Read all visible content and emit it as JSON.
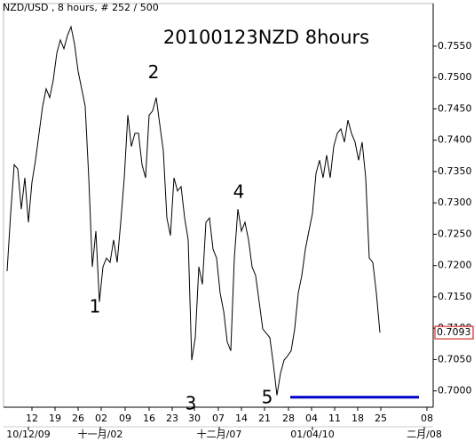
{
  "chart_data": {
    "type": "line",
    "header": "NZD/USD , 8 hours, # 252 / 500",
    "title": "20100123NZD 8hours",
    "series": [
      {
        "name": "NZD/USD",
        "color": "#000000",
        "values": [
          0.7191,
          0.7283,
          0.7361,
          0.7354,
          0.729,
          0.734,
          0.7269,
          0.7333,
          0.7368,
          0.7411,
          0.7454,
          0.7482,
          0.7468,
          0.7496,
          0.7539,
          0.756,
          0.7546,
          0.7567,
          0.7581,
          0.7553,
          0.751,
          0.7482,
          0.7454,
          0.734,
          0.7198,
          0.7255,
          0.7142,
          0.7198,
          0.7212,
          0.7205,
          0.7241,
          0.7205,
          0.7269,
          0.734,
          0.744,
          0.739,
          0.7411,
          0.7411,
          0.7361,
          0.734,
          0.744,
          0.7447,
          0.7468,
          0.7425,
          0.7383,
          0.7276,
          0.7248,
          0.734,
          0.7319,
          0.7326,
          0.7276,
          0.7241,
          0.7049,
          0.7085,
          0.7198,
          0.717,
          0.7269,
          0.7276,
          0.7226,
          0.7212,
          0.7156,
          0.7127,
          0.7078,
          0.7064,
          0.7212,
          0.729,
          0.7255,
          0.7269,
          0.7241,
          0.7198,
          0.7184,
          0.7142,
          0.7099,
          0.7092,
          0.7085,
          0.7042,
          0.6993,
          0.7028,
          0.7049,
          0.7056,
          0.7064,
          0.7099,
          0.7156,
          0.7184,
          0.7226,
          0.7255,
          0.7283,
          0.7347,
          0.7368,
          0.734,
          0.7376,
          0.734,
          0.739,
          0.7411,
          0.7418,
          0.7397,
          0.7432,
          0.7411,
          0.7397,
          0.7368,
          0.7397,
          0.734,
          0.7212,
          0.7205,
          0.7156,
          0.7093
        ]
      }
    ],
    "xlim": [
      -1,
      120
    ],
    "ylim": [
      0.6974,
      0.7618
    ],
    "yticks": [
      {
        "value": 0.7,
        "label": "0.7000"
      },
      {
        "value": 0.705,
        "label": "0.7050"
      },
      {
        "value": 0.71,
        "label": "0.7100"
      },
      {
        "value": 0.715,
        "label": "0.7150"
      },
      {
        "value": 0.72,
        "label": "0.7200"
      },
      {
        "value": 0.725,
        "label": "0.7250"
      },
      {
        "value": 0.73,
        "label": "0.7300"
      },
      {
        "value": 0.735,
        "label": "0.7350"
      },
      {
        "value": 0.74,
        "label": "0.7400"
      },
      {
        "value": 0.745,
        "label": "0.7450"
      },
      {
        "value": 0.75,
        "label": "0.7500"
      },
      {
        "value": 0.755,
        "label": "0.7550"
      }
    ],
    "xticks": [
      {
        "value": 7,
        "label": "12"
      },
      {
        "value": 13.5,
        "label": "19"
      },
      {
        "value": 20,
        "label": "26"
      },
      {
        "value": 26.5,
        "label": "02"
      },
      {
        "value": 33.25,
        "label": "09"
      },
      {
        "value": 40,
        "label": "16"
      },
      {
        "value": 46.5,
        "label": "23"
      },
      {
        "value": 52.75,
        "label": "30"
      },
      {
        "value": 59.5,
        "label": "07"
      },
      {
        "value": 66,
        "label": "14"
      },
      {
        "value": 72.5,
        "label": "21"
      },
      {
        "value": 79.25,
        "label": "28"
      },
      {
        "value": 85.75,
        "label": "04"
      },
      {
        "value": 92.25,
        "label": "11"
      },
      {
        "value": 98.75,
        "label": "18"
      },
      {
        "value": 105.25,
        "label": "25"
      },
      {
        "value": 118.25,
        "label": "08"
      }
    ],
    "xticks2": [
      {
        "value": 6,
        "label": "10/12/09"
      },
      {
        "value": 26.25,
        "label": "十一月/02"
      },
      {
        "value": 59.75,
        "label": "十二月/07"
      },
      {
        "value": 86,
        "label": "01/04/10"
      },
      {
        "value": 117.5,
        "label": "二月/08"
      }
    ],
    "last_price": {
      "value": 0.7093,
      "label": "0.7093",
      "color": "#cc0000"
    },
    "hline": {
      "y": 0.699,
      "x": [
        79.75,
        116
      ],
      "color": "#0000cc"
    },
    "annotation_color": "#0000cc",
    "annotations": [
      {
        "label": "1",
        "x": 24.75,
        "y": 0.7133
      },
      {
        "label": "2",
        "x": 41.25,
        "y": 0.7507
      },
      {
        "label": "3",
        "x": 51.75,
        "y": 0.6978
      },
      {
        "label": "4",
        "x": 65.25,
        "y": 0.7316
      },
      {
        "label": "5",
        "x": 73.25,
        "y": 0.6988
      }
    ]
  }
}
